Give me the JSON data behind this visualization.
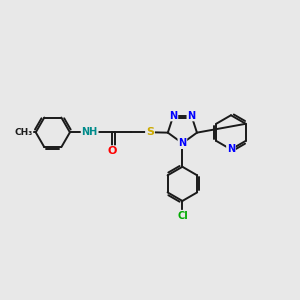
{
  "bg_color": "#e8e8e8",
  "bond_color": "#1a1a1a",
  "line_width": 1.4,
  "atom_colors": {
    "N": "#0000ff",
    "O": "#ff0000",
    "S": "#ccaa00",
    "Cl": "#00aa00",
    "H": "#008b8b",
    "C": "#1a1a1a"
  },
  "font_size": 8.0,
  "font_size_small": 7.0,
  "xlim": [
    0,
    10
  ],
  "ylim": [
    0,
    10
  ]
}
